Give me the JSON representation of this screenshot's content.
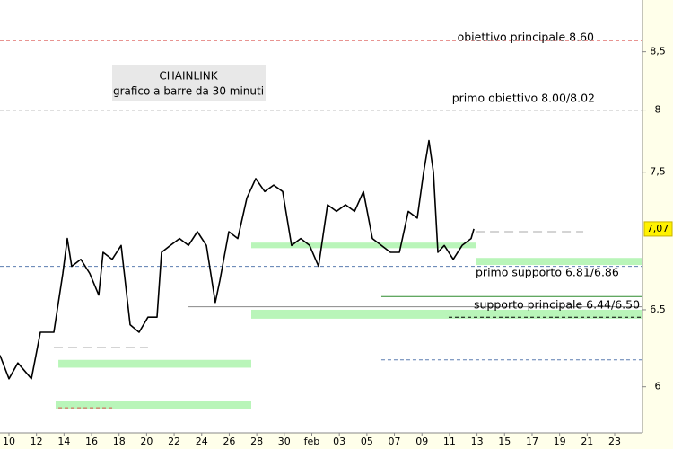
{
  "chart_data": {
    "type": "line",
    "title": "CHAINLINK",
    "subtitle": "grafico a barre da 30 minuti",
    "log_scale": true,
    "grid": false,
    "xlim": [
      -0.65,
      46.02
    ],
    "ylim": [
      5.73,
      8.97
    ],
    "xticks": [
      {
        "value": 0,
        "label": "10"
      },
      {
        "value": 2,
        "label": "12"
      },
      {
        "value": 4,
        "label": "14"
      },
      {
        "value": 6,
        "label": "16"
      },
      {
        "value": 8,
        "label": "18"
      },
      {
        "value": 10,
        "label": "20"
      },
      {
        "value": 12,
        "label": "22"
      },
      {
        "value": 14,
        "label": "24"
      },
      {
        "value": 16,
        "label": "26"
      },
      {
        "value": 18,
        "label": "28"
      },
      {
        "value": 20,
        "label": "30"
      },
      {
        "value": 22,
        "label": "feb"
      },
      {
        "value": 24,
        "label": "03"
      },
      {
        "value": 26,
        "label": "05"
      },
      {
        "value": 28,
        "label": "07"
      },
      {
        "value": 30,
        "label": "09"
      },
      {
        "value": 32,
        "label": "11"
      },
      {
        "value": 34,
        "label": "13"
      },
      {
        "value": 36,
        "label": "15"
      },
      {
        "value": 38,
        "label": "17"
      },
      {
        "value": 40,
        "label": "19"
      },
      {
        "value": 42,
        "label": "21"
      },
      {
        "value": 44,
        "label": "23"
      }
    ],
    "yticks": [
      {
        "value": 8.5,
        "label": "8,5"
      },
      8,
      {
        "value": 7.5,
        "label": "7,5"
      },
      {
        "value": 6.5,
        "label": "6,5"
      },
      6
    ],
    "last_price": {
      "value": 7.07,
      "label": "7,07"
    },
    "series": [
      {
        "color": "#000000",
        "x": [
          -0.65,
          0,
          0.65,
          1.63,
          2.28,
          3.26,
          3.91,
          4.24,
          4.56,
          5.22,
          5.87,
          6.52,
          6.84,
          7.5,
          8.15,
          8.8,
          9.45,
          10.1,
          10.76,
          11.08,
          11.73,
          12.39,
          13.04,
          13.69,
          14.34,
          14.99,
          15.32,
          15.97,
          16.62,
          17.28,
          17.93,
          18.58,
          19.23,
          19.88,
          20.53,
          21.19,
          21.84,
          22.49,
          23.14,
          23.79,
          24.45,
          25.1,
          25.75,
          26.4,
          27.05,
          27.71,
          28.36,
          29.01,
          29.66,
          30.12,
          30.51,
          30.83,
          31.16,
          31.62,
          32.27,
          32.92,
          33.57,
          33.77
        ],
        "values": [
          6.2,
          6.05,
          6.15,
          6.05,
          6.35,
          6.35,
          6.75,
          7.0,
          6.8,
          6.85,
          6.75,
          6.6,
          6.9,
          6.85,
          6.95,
          6.4,
          6.35,
          6.45,
          6.45,
          6.9,
          6.95,
          7.0,
          6.95,
          7.05,
          6.95,
          6.55,
          6.7,
          7.05,
          7.0,
          7.3,
          7.45,
          7.35,
          7.4,
          7.35,
          6.95,
          7.0,
          6.95,
          6.8,
          7.25,
          7.2,
          7.25,
          7.2,
          7.35,
          7.0,
          6.95,
          6.9,
          6.9,
          7.2,
          7.15,
          7.5,
          7.75,
          7.5,
          6.9,
          6.95,
          6.85,
          6.95,
          7.0,
          7.07
        ]
      }
    ],
    "levels": [
      {
        "label": "obiettivo principale 8.60",
        "value": 8.6,
        "from": -0.65,
        "to": 46.02,
        "style": "dashed",
        "color": "#d9534f"
      },
      {
        "label": "primo obiettivo 8.00/8.02",
        "value": 8.0,
        "from": -0.65,
        "to": 46.02,
        "style": "dashed",
        "color": "#000000"
      },
      {
        "value": 6.8,
        "from": -0.65,
        "to": 46.02,
        "style": "dashed",
        "color": "#5b7db1"
      },
      {
        "label": "primo supporto 6.81/6.86",
        "value": [
          6.81,
          6.86
        ],
        "from": 33.9,
        "to": 46.02,
        "style": "zone",
        "color": "#b9f5b9"
      },
      {
        "value": 6.59,
        "from": 27.05,
        "to": 46.02,
        "style": "solid",
        "color": "#2e8b2e"
      },
      {
        "value": 6.52,
        "from": 13.04,
        "to": 46.02,
        "style": "solid",
        "color": "#888888"
      },
      {
        "label": "supporto principale 6.44/6.50",
        "value": [
          6.44,
          6.5
        ],
        "from": 17.6,
        "to": 46.02,
        "style": "zone",
        "color": "#b9f5b9"
      },
      {
        "value": 6.45,
        "from": 31.94,
        "to": 46.02,
        "style": "dashed",
        "color": "#000000"
      },
      {
        "value": 6.17,
        "from": 27.05,
        "to": 46.02,
        "style": "dashed",
        "color": "#5b7db1"
      },
      {
        "value": [
          6.12,
          6.17
        ],
        "from": 3.59,
        "to": 17.6,
        "style": "zone",
        "color": "#b9f5b9"
      },
      {
        "value": [
          5.86,
          5.91
        ],
        "from": 3.39,
        "to": 17.6,
        "style": "zone",
        "color": "#b9f5b9"
      },
      {
        "value": 6.25,
        "from": 3.26,
        "to": 10.1,
        "style": "dashed",
        "color": "#aaaaaa"
      },
      {
        "value": 5.87,
        "from": 3.59,
        "to": 7.5,
        "style": "dashed",
        "color": "#d9534f"
      },
      {
        "value": [
          6.93,
          6.97
        ],
        "from": 17.6,
        "to": 33.9,
        "style": "zone",
        "color": "#b9f5b9"
      },
      {
        "value": 7.05,
        "from": 33.9,
        "to": 41.72,
        "style": "dashed",
        "color": "#aaaaaa"
      }
    ]
  }
}
